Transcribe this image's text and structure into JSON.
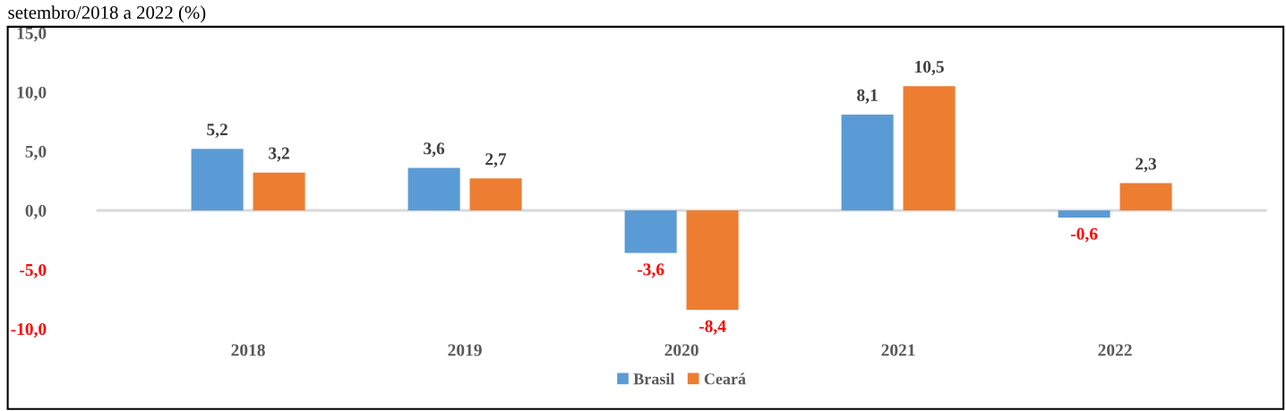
{
  "chart_data": {
    "type": "bar",
    "title": "setembro/2018 a 2022 (%)",
    "categories": [
      "2018",
      "2019",
      "2020",
      "2021",
      "2022"
    ],
    "series": [
      {
        "name": "Brasil",
        "color": "#5b9bd5",
        "values": [
          5.2,
          3.6,
          -3.6,
          8.1,
          -0.6
        ],
        "value_labels": [
          "5,2",
          "3,6",
          "-3,6",
          "8,1",
          "-0,6"
        ]
      },
      {
        "name": "Ceará",
        "color": "#ed7d31",
        "values": [
          3.2,
          2.7,
          -8.4,
          10.5,
          2.3
        ],
        "value_labels": [
          "3,2",
          "2,7",
          "-8,4",
          "10,5",
          "2,3"
        ]
      }
    ],
    "ylim": [
      -10,
      15
    ],
    "yticks": [
      {
        "value": -10,
        "label": "-10,0"
      },
      {
        "value": -5,
        "label": "-5,0"
      },
      {
        "value": 0,
        "label": "0,0"
      },
      {
        "value": 5,
        "label": "5,0"
      },
      {
        "value": 10,
        "label": "10,0"
      },
      {
        "value": 15,
        "label": "15,0"
      }
    ],
    "ref_lines": [
      {
        "axis": "y",
        "value": 0,
        "color": "#d9d9d9"
      }
    ],
    "grid": false,
    "legend": "bottom"
  }
}
